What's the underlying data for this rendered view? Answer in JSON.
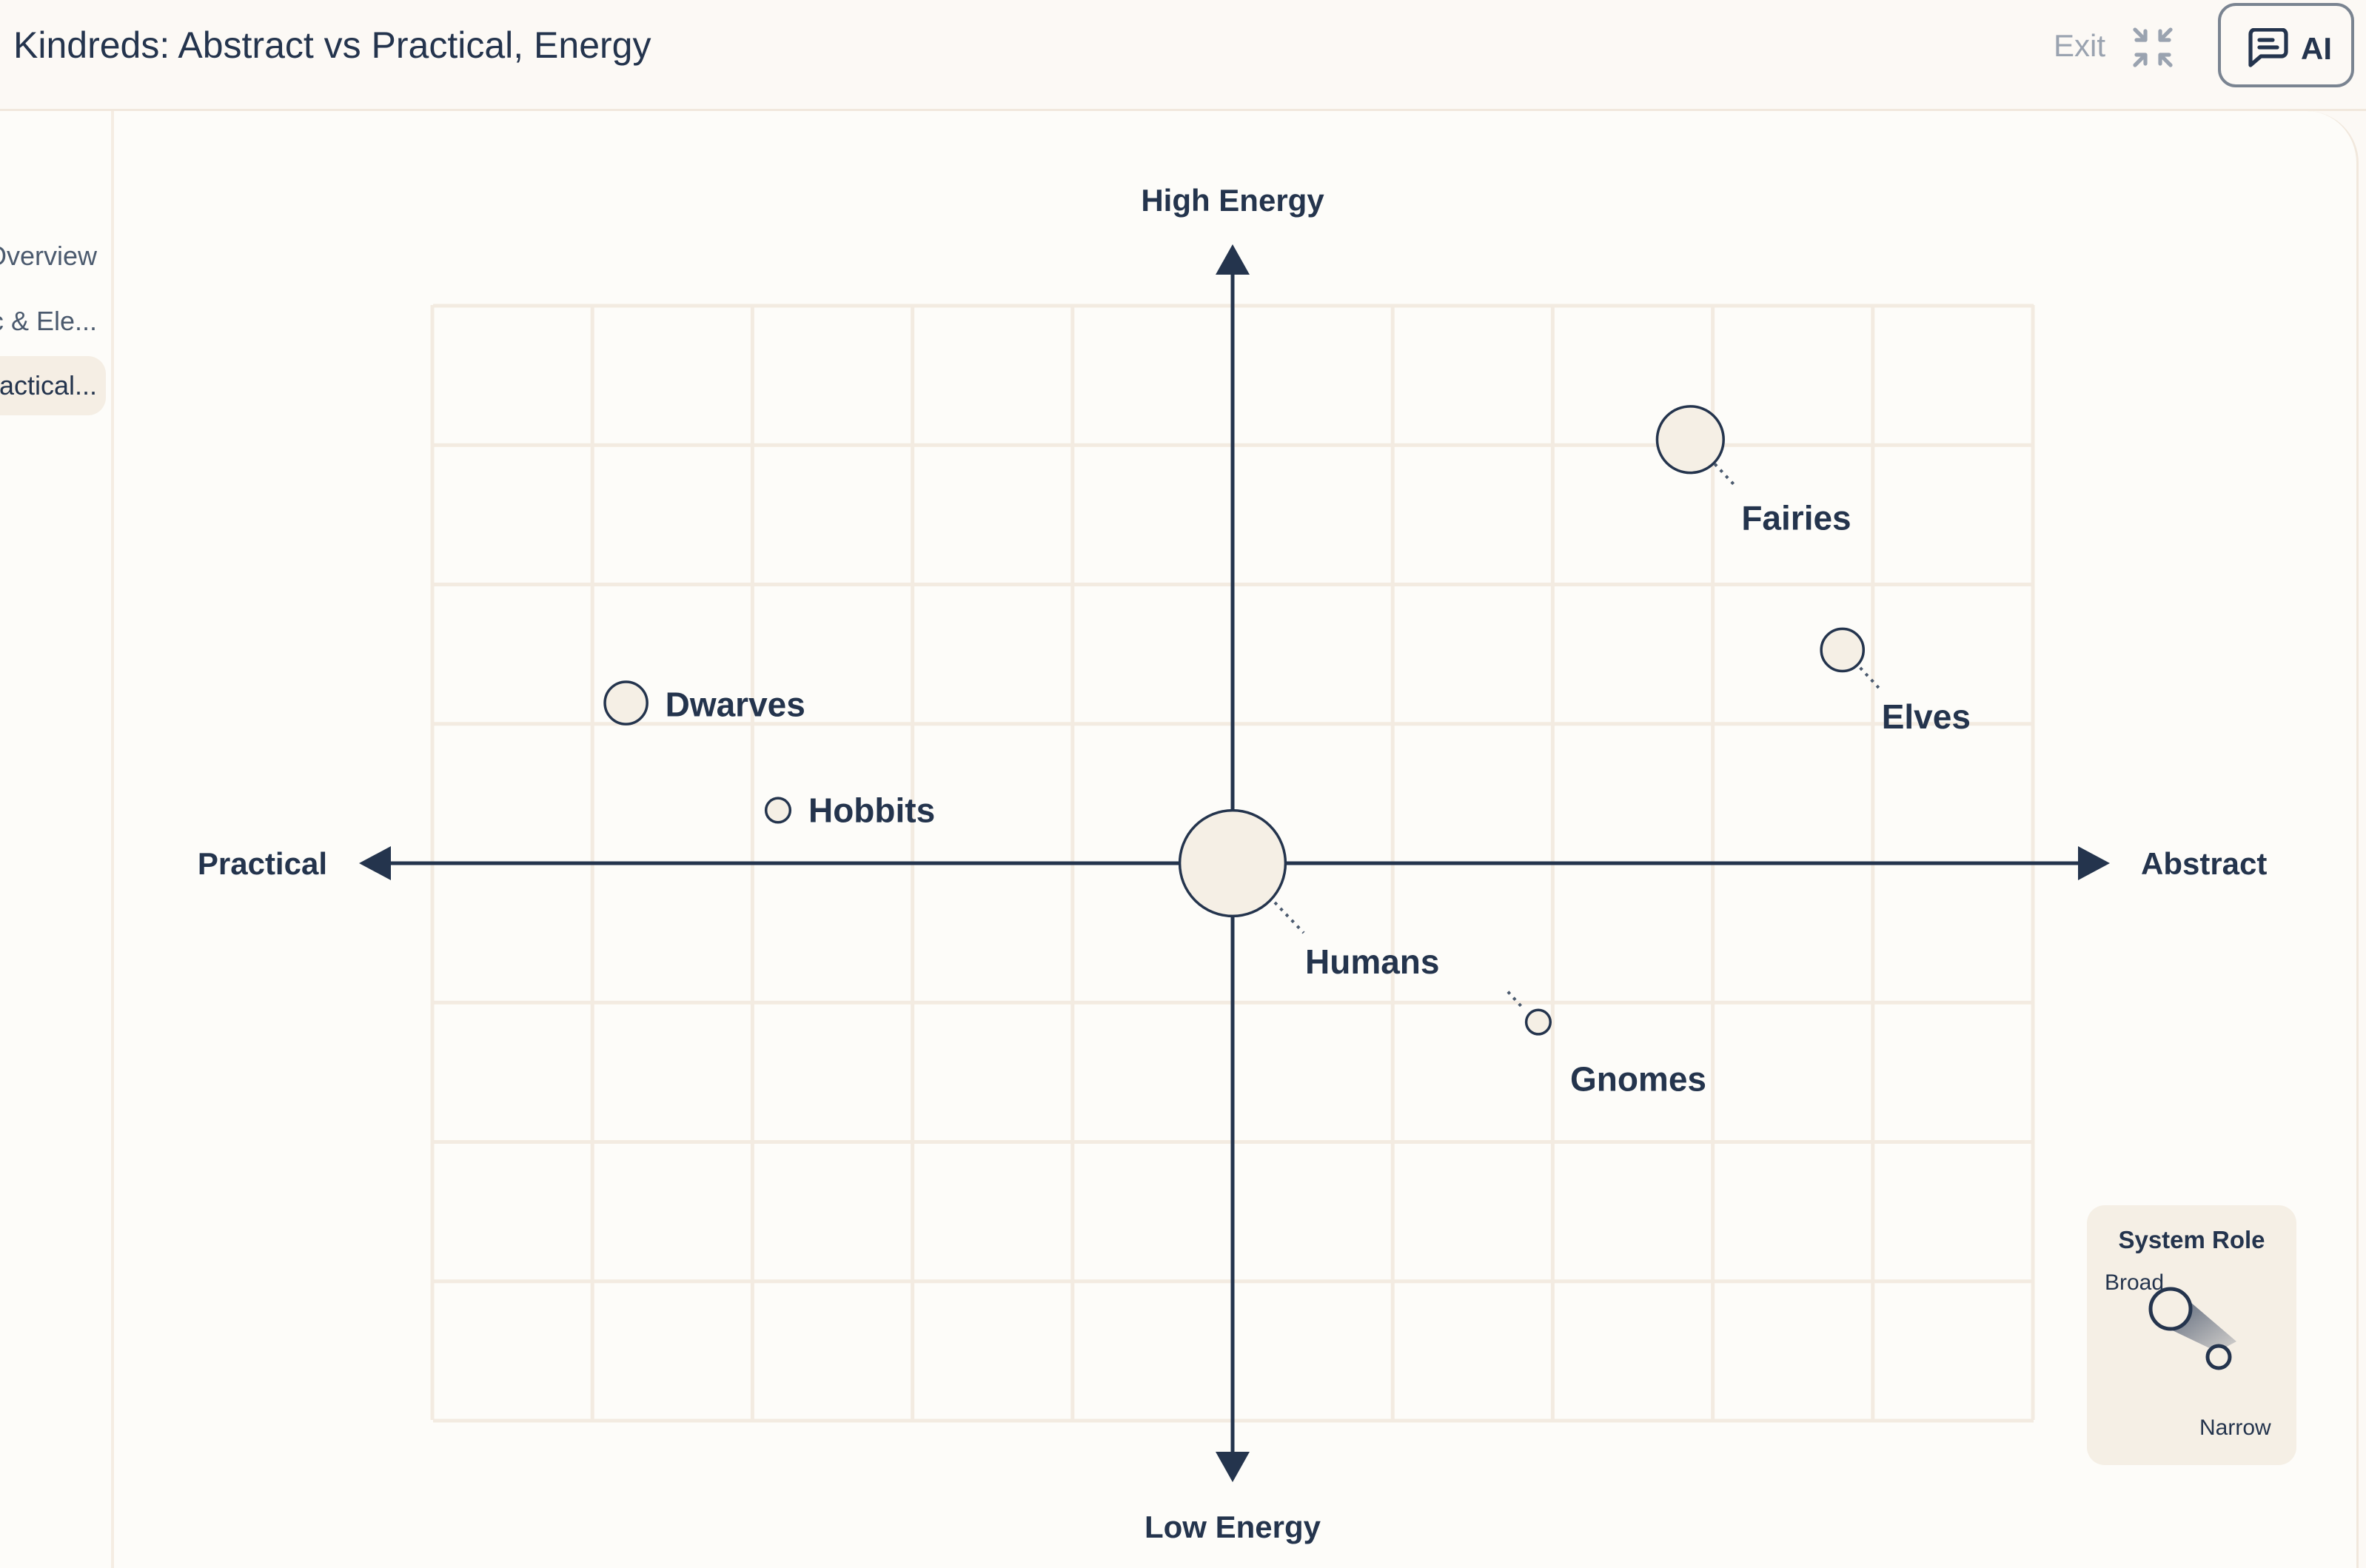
{
  "header": {
    "title": "Kindreds: Abstract vs Practical, Energy",
    "exit_label": "Exit",
    "exit_icon": "collapse-arrows-icon",
    "ai_label": "AI",
    "ai_icon": "chat-message-icon"
  },
  "sidebar": {
    "items": [
      {
        "label": "Overview",
        "active": false
      },
      {
        "label": "Magic & Ele...",
        "active": false
      },
      {
        "label": "Abstract vs Practical...",
        "active": true
      }
    ]
  },
  "legend": {
    "title": "System Role",
    "broad_label": "Broad",
    "narrow_label": "Narrow"
  },
  "colors": {
    "axis": "#24344d",
    "grid": "#f3ebe1",
    "bubble_fill": "#f5efe5",
    "background": "#fdfcf9"
  },
  "chart_data": {
    "type": "scatter",
    "subtype": "bubble quadrant",
    "x_axis": {
      "negative_label": "Practical",
      "positive_label": "Abstract",
      "range": [
        -5,
        5
      ]
    },
    "y_axis": {
      "negative_label": "Low Energy",
      "positive_label": "High Energy",
      "range": [
        -4,
        4
      ]
    },
    "grid": true,
    "size_meaning": "System Role (Broad = large, Narrow = small)",
    "points": [
      {
        "name": "Humans",
        "x": 0,
        "y": 0,
        "size": 35
      },
      {
        "name": "Fairies",
        "x": 2.86,
        "y": 3.04,
        "size": 22
      },
      {
        "name": "Elves",
        "x": 3.81,
        "y": 1.53,
        "size": 14
      },
      {
        "name": "Dwarves",
        "x": -3.79,
        "y": 1.15,
        "size": 14
      },
      {
        "name": "Hobbits",
        "x": -2.84,
        "y": 0.38,
        "size": 8
      },
      {
        "name": "Gnomes",
        "x": 1.91,
        "y": -1.14,
        "size": 8
      }
    ]
  }
}
